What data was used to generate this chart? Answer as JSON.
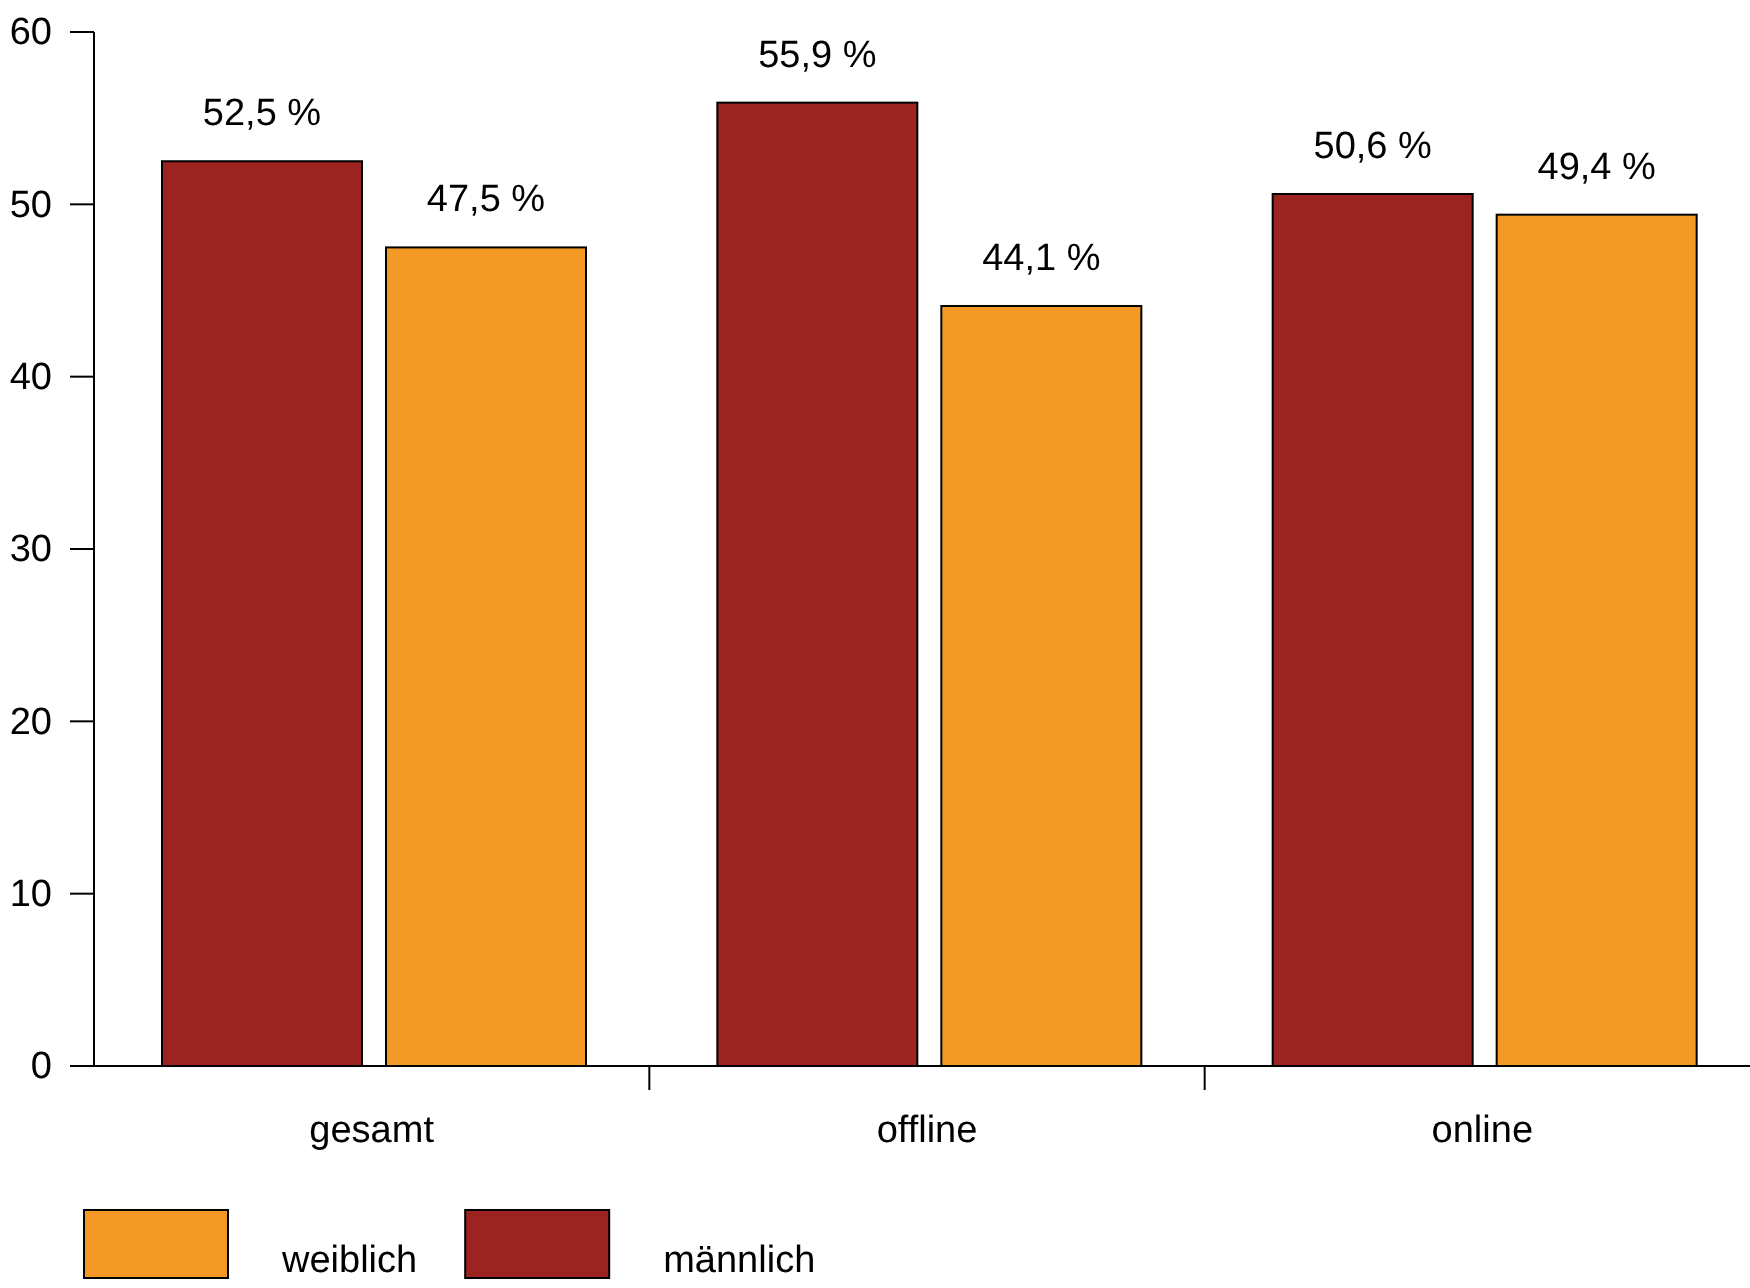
{
  "chart_data": {
    "type": "bar",
    "categories": [
      "gesamt",
      "offline",
      "online"
    ],
    "series": [
      {
        "name": "männlich",
        "color": "#9b2320",
        "values": [
          52.5,
          55.9,
          50.6
        ],
        "value_labels": [
          "52,5 %",
          "55,9 %",
          "50,6 %"
        ]
      },
      {
        "name": "weiblich",
        "color": "#f39a26",
        "values": [
          47.5,
          44.1,
          49.4
        ],
        "value_labels": [
          "47,5 %",
          "44,1 %",
          "49,4 %"
        ]
      }
    ],
    "ylim": [
      0,
      60
    ],
    "yticks": [
      0,
      10,
      20,
      30,
      40,
      50,
      60
    ],
    "grid": false,
    "legend": "bottom"
  }
}
